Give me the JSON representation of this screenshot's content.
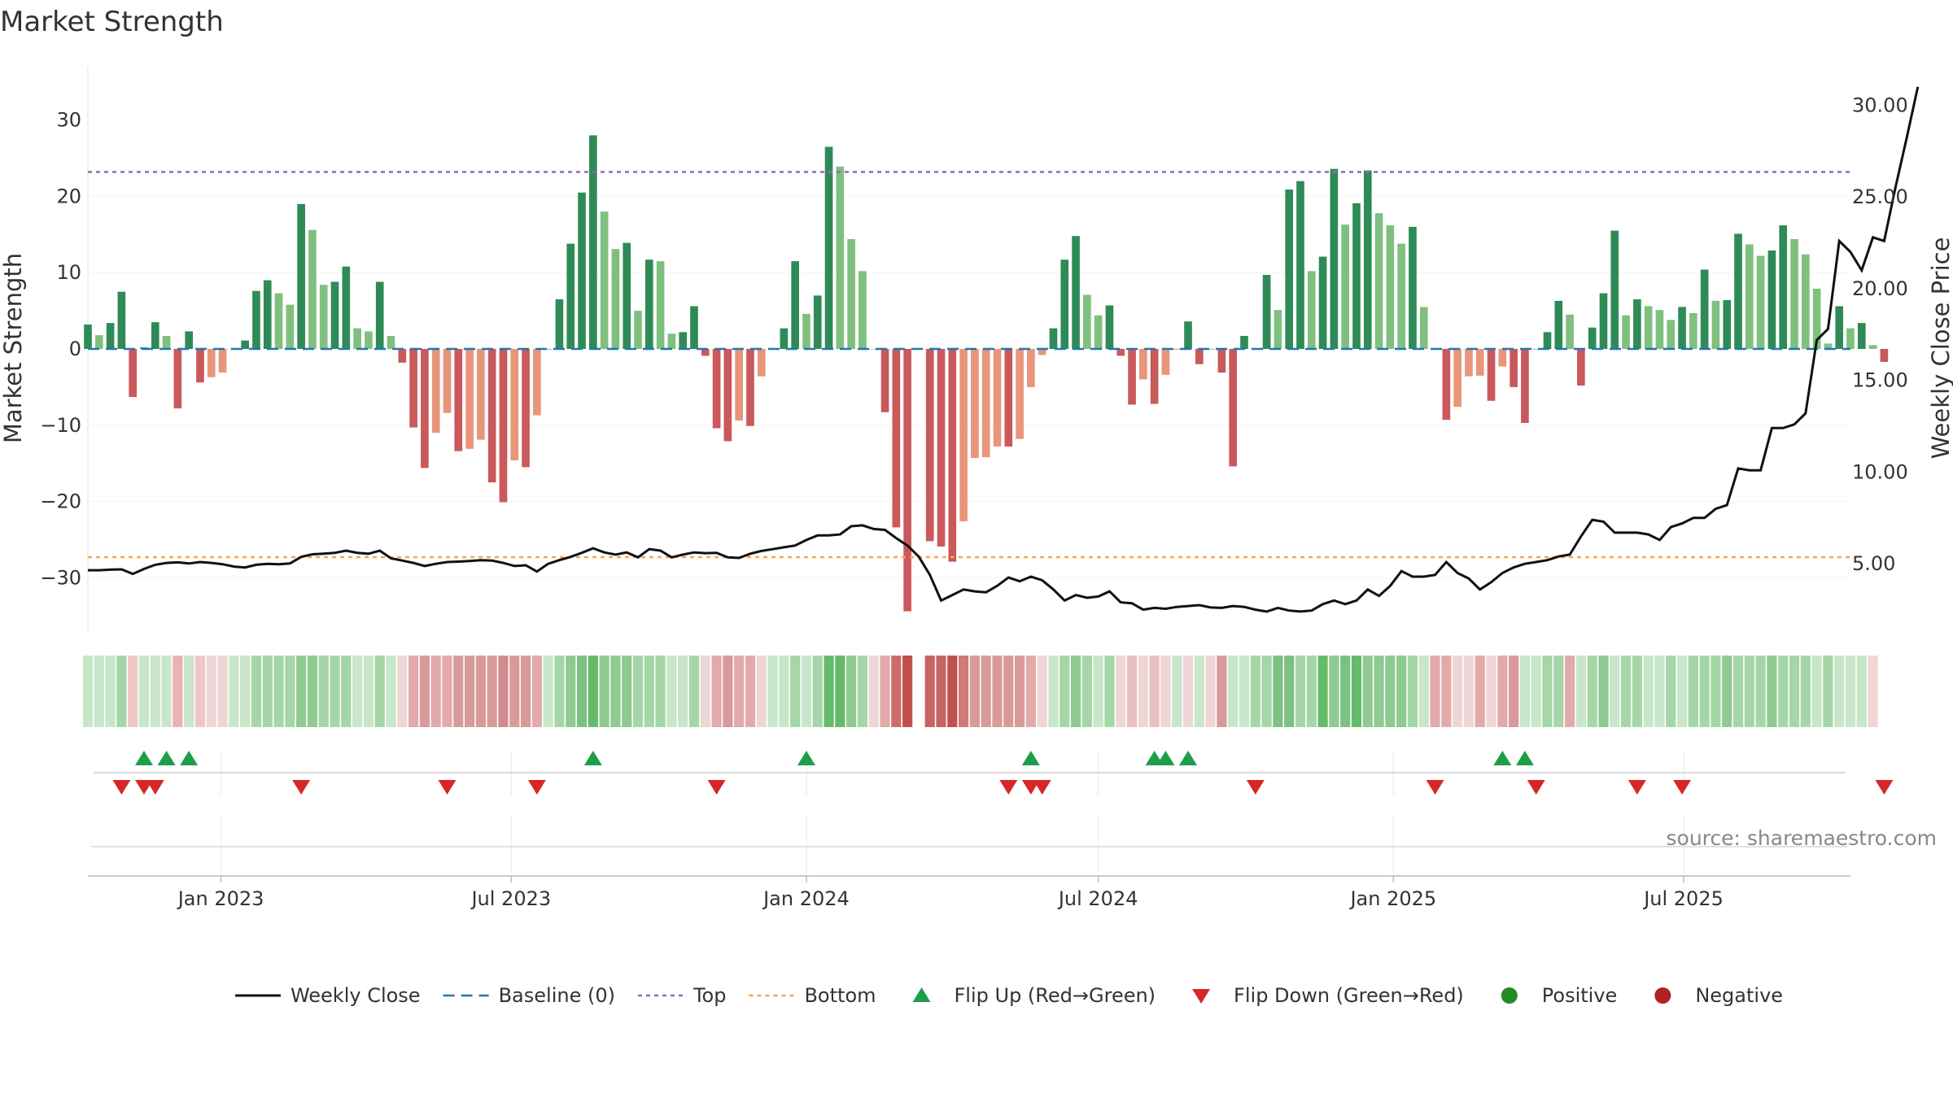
{
  "chart_data": {
    "type": "bar",
    "title": "Market Strength",
    "ylabel": "Market Strength",
    "y2label": "Weekly Close Price",
    "ylim": [
      -37,
      37
    ],
    "y2lim": [
      1.33,
      32.1
    ],
    "yticks": [
      30,
      20,
      10,
      0,
      -10,
      -20,
      -30
    ],
    "yticklabels": [
      "30",
      "20",
      "10",
      "0",
      "−10",
      "−20",
      "−30"
    ],
    "y2ticks": [
      30,
      25,
      20,
      15,
      10,
      5
    ],
    "y2ticklabels": [
      "30.00",
      "25.00",
      "20.00",
      "15.00",
      "10.00",
      "5.00"
    ],
    "xaxis": {
      "start": "2022-10-10",
      "end": "2025-10-13",
      "ticks": [
        {
          "date": "2023-01-01",
          "label": "Jan 2023"
        },
        {
          "date": "2023-07-01",
          "label": "Jul 2023"
        },
        {
          "date": "2024-01-01",
          "label": "Jan 2024"
        },
        {
          "date": "2024-07-01",
          "label": "Jul 2024"
        },
        {
          "date": "2025-01-01",
          "label": "Jan 2025"
        },
        {
          "date": "2025-07-01",
          "label": "Jul 2025"
        }
      ]
    },
    "first_week": "2022-10-10",
    "top_line": 23.2,
    "bottom_line": -27.3,
    "colors": {
      "pos_strong": "#2e8b57",
      "pos_weak": "#7fc07f",
      "neg_strong": "#c9595a",
      "neg_weak": "#e8957a",
      "close": "#111111",
      "baseline": "#1f77b4",
      "top": "#9467bd",
      "bottom": "#ff9f4a",
      "flip_up": "#1f9e4a",
      "flip_down": "#d62728",
      "positive": "#228b22",
      "negative": "#b22222"
    },
    "series": [
      {
        "name": "Market Strength",
        "values": [
          3.2,
          1.8,
          3.4,
          7.5,
          -6.3,
          0.2,
          3.5,
          1.7,
          -7.8,
          2.3,
          -4.4,
          -3.7,
          -3.1,
          0.0,
          1.1,
          7.6,
          9.0,
          7.3,
          5.8,
          19.0,
          15.6,
          8.4,
          8.8,
          10.8,
          2.7,
          2.3,
          8.8,
          1.7,
          -1.8,
          -10.3,
          -15.6,
          -11.0,
          -8.4,
          -13.4,
          -13.1,
          -11.9,
          -17.5,
          -20.1,
          -14.6,
          -15.5,
          -8.7,
          0.0,
          6.5,
          13.8,
          20.5,
          28.0,
          18.0,
          13.1,
          13.9,
          5.0,
          11.7,
          11.5,
          2.0,
          2.2,
          5.6,
          -0.9,
          -10.4,
          -12.1,
          -9.4,
          -10.1,
          -3.6,
          0.0,
          2.7,
          11.5,
          4.6,
          7.0,
          26.5,
          23.9,
          14.4,
          10.2,
          0.0,
          -8.3,
          -23.4,
          -34.4,
          0.0,
          -25.2,
          -25.9,
          -27.9,
          -22.6,
          -14.3,
          -14.2,
          -12.8,
          -12.8,
          -11.8,
          -5.0,
          -0.8,
          2.7,
          11.7,
          14.8,
          7.1,
          4.4,
          5.7,
          -0.9,
          -7.3,
          -4.0,
          -7.2,
          -3.4,
          -0.1,
          3.6,
          -2.0,
          0.0,
          -3.1,
          -15.4,
          1.7,
          0.0,
          9.7,
          5.1,
          20.9,
          22.0,
          10.2,
          12.1,
          23.6,
          16.3,
          19.1,
          23.4,
          17.8,
          16.2,
          13.8,
          16.0,
          5.5,
          0.0,
          -9.3,
          -7.6,
          -3.6,
          -3.5,
          -6.8,
          -2.3,
          -5.0,
          -9.7,
          0.0,
          2.2,
          6.3,
          4.5,
          -4.8,
          2.8,
          7.3,
          15.5,
          4.4,
          6.5,
          5.6,
          5.1,
          3.8,
          5.5,
          4.7,
          10.4,
          6.3,
          6.4,
          15.1,
          13.7,
          12.2,
          12.9,
          16.2,
          14.4,
          12.4,
          7.9,
          0.7,
          5.6,
          2.7,
          3.4,
          0.5,
          -1.7
        ]
      },
      {
        "name": "Weekly Close",
        "values": [
          4.65,
          4.65,
          4.68,
          4.7,
          4.45,
          4.72,
          4.95,
          5.05,
          5.08,
          5.02,
          5.1,
          5.05,
          4.98,
          4.85,
          4.8,
          4.95,
          5.0,
          4.98,
          5.02,
          5.38,
          5.52,
          5.55,
          5.6,
          5.72,
          5.6,
          5.55,
          5.72,
          5.3,
          5.18,
          5.05,
          4.88,
          5.0,
          5.1,
          5.12,
          5.15,
          5.2,
          5.18,
          5.05,
          4.88,
          4.92,
          4.58,
          5.0,
          5.2,
          5.38,
          5.6,
          5.85,
          5.62,
          5.5,
          5.62,
          5.35,
          5.8,
          5.72,
          5.35,
          5.5,
          5.62,
          5.58,
          5.6,
          5.35,
          5.32,
          5.55,
          5.7,
          5.8,
          5.9,
          6.0,
          6.3,
          6.55,
          6.55,
          6.6,
          7.05,
          7.1,
          6.9,
          6.85,
          6.4,
          6.0,
          5.4,
          4.4,
          3.0,
          3.3,
          3.6,
          3.5,
          3.45,
          3.8,
          4.25,
          4.05,
          4.3,
          4.1,
          3.6,
          3.0,
          3.3,
          3.15,
          3.22,
          3.5,
          2.9,
          2.85,
          2.5,
          2.6,
          2.55,
          2.65,
          2.7,
          2.75,
          2.62,
          2.6,
          2.7,
          2.65,
          2.5,
          2.4,
          2.6,
          2.45,
          2.4,
          2.45,
          2.8,
          3.0,
          2.8,
          3.0,
          3.6,
          3.25,
          3.8,
          4.6,
          4.3,
          4.3,
          4.4,
          5.1,
          4.5,
          4.2,
          3.6,
          4.0,
          4.5,
          4.8,
          5.0,
          5.1,
          5.2,
          5.4,
          5.5,
          6.5,
          7.4,
          7.3,
          6.7,
          6.7,
          6.7,
          6.6,
          6.3,
          7.0,
          7.2,
          7.5,
          7.5,
          8.0,
          8.2,
          10.2,
          10.1,
          10.1,
          12.4,
          12.4,
          12.6,
          13.2,
          17.2,
          17.8,
          22.6,
          22.0,
          21.0,
          22.8,
          22.6,
          25.5,
          28.2,
          31.0
        ]
      }
    ],
    "regime_colors": [
      "#c8e6c9",
      "#c8e6c9",
      "#c8e6c9",
      "#a5d6a7",
      "#efc6c6",
      "#c8e6c9",
      "#c8e6c9",
      "#c8e6c9",
      "#e8b3b3",
      "#c8e6c9",
      "#efc6c6",
      "#efd6d6",
      "#efd6d6",
      "#c8e6c9",
      "#c8e6c9",
      "#a5d6a7",
      "#a5d6a7",
      "#a5d6a7",
      "#a5d6a7",
      "#8fca92",
      "#8fca92",
      "#a5d6a7",
      "#a5d6a7",
      "#a5d6a7",
      "#c8e6c9",
      "#c8e6c9",
      "#a5d6a7",
      "#c8e6c9",
      "#efd6d6",
      "#e2aaaa",
      "#d99a9a",
      "#e2aaaa",
      "#e2aaaa",
      "#d99a9a",
      "#d99a9a",
      "#d99a9a",
      "#d99a9a",
      "#d08c8c",
      "#d99a9a",
      "#d99a9a",
      "#e2aaaa",
      "#c8e6c9",
      "#a5d6a7",
      "#8fca92",
      "#7cc182",
      "#66bb6a",
      "#8fca92",
      "#8fca92",
      "#8fca92",
      "#a5d6a7",
      "#a5d6a7",
      "#a5d6a7",
      "#c8e6c9",
      "#c8e6c9",
      "#a5d6a7",
      "#efd6d6",
      "#e2aaaa",
      "#d99a9a",
      "#e2aaaa",
      "#e2aaaa",
      "#efd6d6",
      "#c8e6c9",
      "#c8e6c9",
      "#a5d6a7",
      "#c8e6c9",
      "#a5d6a7",
      "#66bb6a",
      "#66bb6a",
      "#8fca92",
      "#a5d6a7",
      "#efd6d6",
      "#e2aaaa",
      "#cd6b6b",
      "#c0504d",
      "#ffffff",
      "#c86464",
      "#c86464",
      "#c0504d",
      "#d07a7a",
      "#d99a9a",
      "#d99a9a",
      "#d99a9a",
      "#d99a9a",
      "#d99a9a",
      "#e2aaaa",
      "#efd6d6",
      "#c8e6c9",
      "#a5d6a7",
      "#8fca92",
      "#a5d6a7",
      "#c8e6c9",
      "#a5d6a7",
      "#efd6d6",
      "#e8c0c0",
      "#efd6d6",
      "#e8c0c0",
      "#efd6d6",
      "#c8e6c9",
      "#efd6d6",
      "#c8e6c9",
      "#efd6d6",
      "#d99a9a",
      "#c8e6c9",
      "#c8e6c9",
      "#a5d6a7",
      "#a5d6a7",
      "#7cc182",
      "#7cc182",
      "#a5d6a7",
      "#a5d6a7",
      "#66bb6a",
      "#8fca92",
      "#7cc182",
      "#66bb6a",
      "#8fca92",
      "#8fca92",
      "#8fca92",
      "#8fca92",
      "#a5d6a7",
      "#c8e6c9",
      "#e2aaaa",
      "#e2aaaa",
      "#efd6d6",
      "#efd6d6",
      "#e2aaaa",
      "#efd6d6",
      "#e2aaaa",
      "#d99a9a",
      "#c8e6c9",
      "#c8e6c9",
      "#a5d6a7",
      "#a5d6a7",
      "#e2aaaa",
      "#c8e6c9",
      "#a5d6a7",
      "#8fca92",
      "#c8e6c9",
      "#a5d6a7",
      "#a5d6a7",
      "#c8e6c9",
      "#c8e6c9",
      "#a5d6a7",
      "#c8e6c9",
      "#a5d6a7",
      "#a5d6a7",
      "#a5d6a7",
      "#8fca92",
      "#a5d6a7",
      "#a5d6a7",
      "#a5d6a7",
      "#8fca92",
      "#a5d6a7",
      "#a5d6a7",
      "#a5d6a7",
      "#c8e6c9",
      "#a5d6a7",
      "#c8e6c9",
      "#c8e6c9",
      "#c8e6c9",
      "#efd6d6"
    ],
    "flip_up_weeks": [
      5,
      7,
      9,
      45,
      64,
      84,
      95,
      96,
      98,
      126,
      128
    ],
    "flip_down_weeks": [
      3,
      5,
      6,
      19,
      32,
      40,
      56,
      82,
      84,
      85,
      104,
      120,
      129,
      138,
      142,
      160
    ]
  },
  "legend": [
    {
      "key": "close",
      "label": "Weekly Close"
    },
    {
      "key": "baseline",
      "label": "Baseline (0)"
    },
    {
      "key": "top",
      "label": "Top"
    },
    {
      "key": "bottom",
      "label": "Bottom"
    },
    {
      "key": "flip_up",
      "label": "Flip Up (Red→Green)"
    },
    {
      "key": "flip_down",
      "label": "Flip Down (Green→Red)"
    },
    {
      "key": "positive",
      "label": "Positive"
    },
    {
      "key": "negative",
      "label": "Negative"
    }
  ],
  "source": "source: sharemaestro.com"
}
